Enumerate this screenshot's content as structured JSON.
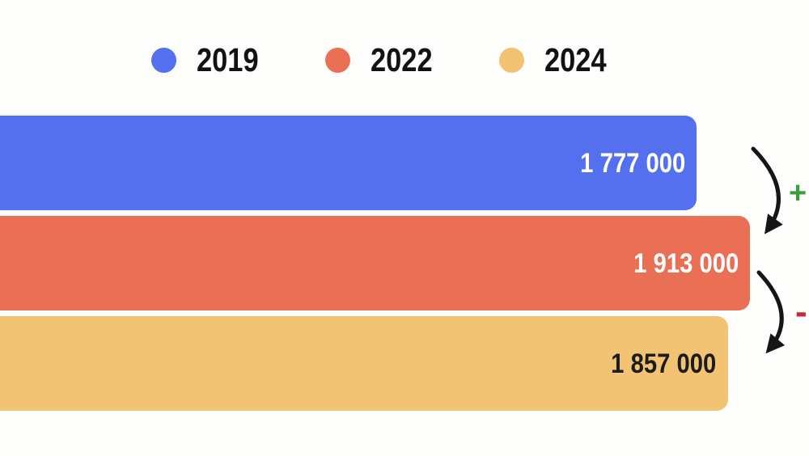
{
  "page": {
    "background": "#fdfdfb"
  },
  "legend": {
    "items": [
      {
        "label": "2019",
        "color": "#5470ee"
      },
      {
        "label": "2022",
        "color": "#e97055"
      },
      {
        "label": "2024",
        "color": "#f2c373"
      }
    ]
  },
  "bars": [
    {
      "year": "2019",
      "label": "1 777 000",
      "value": 1777000,
      "color": "#5470ee",
      "label_color": "#ffffff"
    },
    {
      "year": "2022",
      "label": "1 913 000",
      "value": 1913000,
      "color": "#e97055",
      "label_color": "#ffffff"
    },
    {
      "year": "2024",
      "label": "1 857 000",
      "value": 1857000,
      "color": "#f2c373",
      "label_color": "#1c1c1c"
    }
  ],
  "annotations": {
    "increase": {
      "symbol": "+",
      "color": "#3d9b40"
    },
    "decrease": {
      "symbol": "-",
      "color": "#c92a35"
    }
  },
  "chart_data": {
    "type": "bar",
    "orientation": "horizontal",
    "title": "",
    "xlabel": "",
    "ylabel": "",
    "categories": [
      "2019",
      "2022",
      "2024"
    ],
    "values": [
      1777000,
      1913000,
      1857000
    ],
    "value_labels": [
      "1 777 000",
      "1 913 000",
      "1 857 000"
    ],
    "series_colors": [
      "#5470ee",
      "#e97055",
      "#f2c373"
    ],
    "xlim": [
      0,
      2064000
    ],
    "grid": false,
    "legend_position": "top",
    "annotations": [
      {
        "symbol": "+",
        "color": "#3d9b40",
        "between": [
          "2019",
          "2022"
        ],
        "arrow": "curved-down"
      },
      {
        "symbol": "-",
        "color": "#c92a35",
        "between": [
          "2022",
          "2024"
        ],
        "arrow": "curved-down"
      }
    ]
  }
}
